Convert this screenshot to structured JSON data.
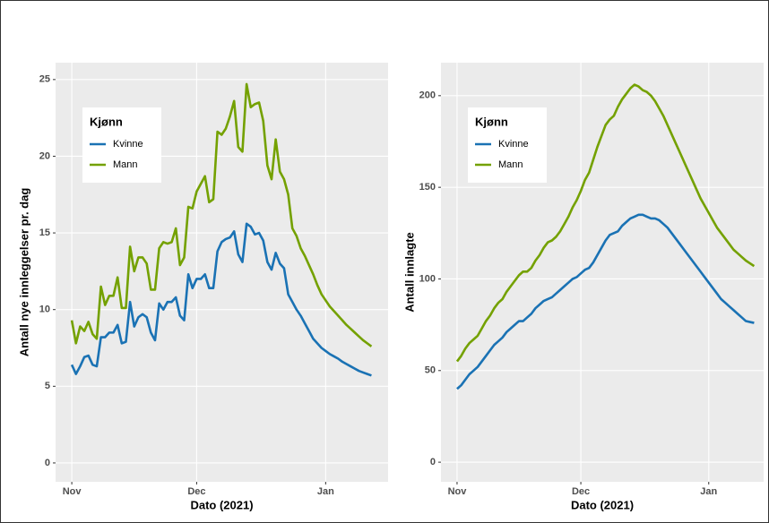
{
  "chart_data": [
    {
      "type": "line",
      "x_label": "Dato (2021)",
      "y_label": "Antall nye innleggelser pr. dag",
      "legend_title": "Kjønn",
      "legend": "top-left",
      "grid": true,
      "x": [
        0,
        1,
        2,
        3,
        4,
        5,
        6,
        7,
        8,
        9,
        10,
        11,
        12,
        13,
        14,
        15,
        16,
        17,
        18,
        19,
        20,
        21,
        22,
        23,
        24,
        25,
        26,
        27,
        28,
        29,
        30,
        31,
        32,
        33,
        34,
        35,
        36,
        37,
        38,
        39,
        40,
        41,
        42,
        43,
        44,
        45,
        46,
        47,
        48,
        49,
        50,
        51,
        52,
        53,
        54,
        55,
        56,
        57,
        58,
        59,
        60,
        61,
        62,
        63,
        64,
        65,
        66,
        67,
        68,
        69,
        70,
        71,
        72
      ],
      "xlim": [
        -3.9,
        76
      ],
      "xticks": [
        {
          "value": 0,
          "label": "Nov"
        },
        {
          "value": 30,
          "label": "Dec"
        },
        {
          "value": 61,
          "label": "Jan"
        }
      ],
      "ylim": [
        -1.23,
        26.1
      ],
      "yticks": [
        0,
        5,
        10,
        15,
        20,
        25
      ],
      "series": [
        {
          "name": "Kvinne",
          "color": "#1a72b4",
          "values": [
            6.4,
            5.8,
            6.3,
            6.9,
            7.0,
            6.4,
            6.3,
            8.2,
            8.2,
            8.5,
            8.5,
            9.0,
            7.8,
            7.9,
            10.5,
            8.9,
            9.5,
            9.7,
            9.5,
            8.5,
            8.0,
            10.4,
            10.0,
            10.5,
            10.5,
            10.8,
            9.6,
            9.3,
            12.3,
            11.4,
            12.0,
            12.0,
            12.3,
            11.4,
            11.4,
            13.8,
            14.4,
            14.6,
            14.7,
            15.1,
            13.6,
            13.1,
            15.6,
            15.4,
            14.9,
            15.0,
            14.5,
            13.1,
            12.6,
            13.7,
            13.0,
            12.7,
            11.0,
            10.5,
            10.0,
            9.6,
            9.1,
            8.6,
            8.1,
            7.8,
            7.5,
            7.3,
            7.1,
            6.95,
            6.8,
            6.6,
            6.45,
            6.3,
            6.15,
            6.0,
            5.9,
            5.8,
            5.7
          ]
        },
        {
          "name": "Mann",
          "color": "#74a100",
          "values": [
            9.3,
            7.8,
            8.9,
            8.6,
            9.2,
            8.4,
            8.1,
            11.5,
            10.3,
            10.9,
            10.9,
            12.1,
            10.1,
            10.1,
            14.1,
            12.5,
            13.4,
            13.4,
            13.0,
            11.3,
            11.3,
            14.0,
            14.4,
            14.3,
            14.4,
            15.3,
            12.9,
            13.4,
            16.7,
            16.6,
            17.7,
            18.2,
            18.7,
            17.0,
            17.2,
            21.6,
            21.4,
            21.8,
            22.6,
            23.6,
            20.6,
            20.3,
            24.7,
            23.2,
            23.4,
            23.5,
            22.3,
            19.4,
            18.5,
            21.1,
            19.0,
            18.5,
            17.5,
            15.3,
            14.8,
            14.0,
            13.5,
            12.9,
            12.3,
            11.6,
            11.0,
            10.6,
            10.2,
            9.9,
            9.6,
            9.3,
            9.0,
            8.75,
            8.5,
            8.25,
            8.0,
            7.8,
            7.6
          ]
        }
      ]
    },
    {
      "type": "line",
      "x_label": "Dato (2021)",
      "y_label": "Antall innlagte",
      "legend_title": "Kjønn",
      "legend": "top-left",
      "grid": true,
      "x": [
        0,
        1,
        2,
        3,
        4,
        5,
        6,
        7,
        8,
        9,
        10,
        11,
        12,
        13,
        14,
        15,
        16,
        17,
        18,
        19,
        20,
        21,
        22,
        23,
        24,
        25,
        26,
        27,
        28,
        29,
        30,
        31,
        32,
        33,
        34,
        35,
        36,
        37,
        38,
        39,
        40,
        41,
        42,
        43,
        44,
        45,
        46,
        47,
        48,
        49,
        50,
        51,
        52,
        53,
        54,
        55,
        56,
        57,
        58,
        59,
        60,
        61,
        62,
        63,
        64,
        65,
        66,
        67,
        68,
        69,
        70,
        71,
        72
      ],
      "xlim": [
        -3.9,
        74.3
      ],
      "xticks": [
        {
          "value": 0,
          "label": "Nov"
        },
        {
          "value": 30,
          "label": "Dec"
        },
        {
          "value": 61,
          "label": "Jan"
        }
      ],
      "ylim": [
        -10.7,
        218
      ],
      "yticks": [
        0,
        50,
        100,
        150,
        200
      ],
      "series": [
        {
          "name": "Kvinne",
          "color": "#1a72b4",
          "values": [
            40,
            42,
            45,
            48,
            50,
            52,
            55,
            58,
            61,
            64,
            66,
            68,
            71,
            73,
            75,
            77,
            77,
            79,
            81,
            84,
            86,
            88,
            89,
            90,
            92,
            94,
            96,
            98,
            100,
            101,
            103,
            105,
            106,
            109,
            113,
            117,
            121,
            124,
            125,
            126,
            129,
            131,
            133,
            134,
            135,
            135,
            134,
            133,
            133,
            132,
            130,
            128,
            125,
            122,
            119,
            116,
            113,
            110,
            107,
            104,
            101,
            98,
            95,
            92,
            89,
            87,
            85,
            83,
            81,
            79,
            77,
            76.5,
            76
          ]
        },
        {
          "name": "Mann",
          "color": "#74a100",
          "values": [
            55,
            58,
            62,
            65,
            67,
            69,
            73,
            77,
            80,
            84,
            87,
            89,
            93,
            96,
            99,
            102,
            104,
            104,
            106,
            110,
            113,
            117,
            120,
            121,
            123,
            126,
            130,
            134,
            139,
            143,
            148,
            154,
            158,
            165,
            172,
            178,
            184,
            187,
            189,
            194,
            198,
            201,
            204,
            206,
            205,
            203,
            202,
            200,
            197,
            193,
            189,
            184,
            179,
            174,
            169,
            164,
            159,
            154,
            149,
            144,
            140,
            136,
            132,
            128,
            125,
            122,
            119,
            116,
            114,
            112,
            110,
            108.5,
            107
          ]
        }
      ]
    }
  ]
}
